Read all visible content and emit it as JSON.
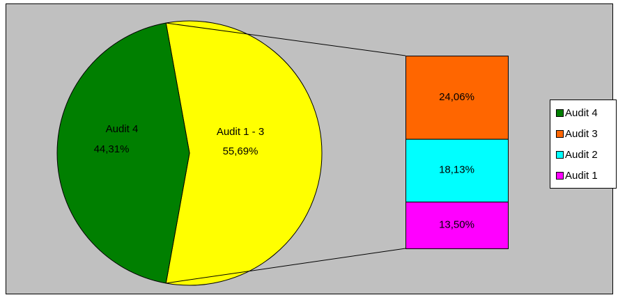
{
  "chart_data": {
    "type": "barofpie",
    "categories": [
      "Audit 4",
      "Audit 1 - 3"
    ],
    "values": [
      44.31,
      55.69
    ],
    "value_labels": [
      "44,31%",
      "55,69%"
    ],
    "colors": [
      "#007f00",
      "#ffff00"
    ],
    "breakout": {
      "categories": [
        "Audit 3",
        "Audit 2",
        "Audit 1"
      ],
      "values": [
        24.06,
        18.13,
        13.5
      ],
      "value_labels": [
        "24,06%",
        "18,13%",
        "13,50%"
      ],
      "colors": [
        "#ff6600",
        "#00ffff",
        "#ff00ff"
      ]
    },
    "legend": "right"
  }
}
